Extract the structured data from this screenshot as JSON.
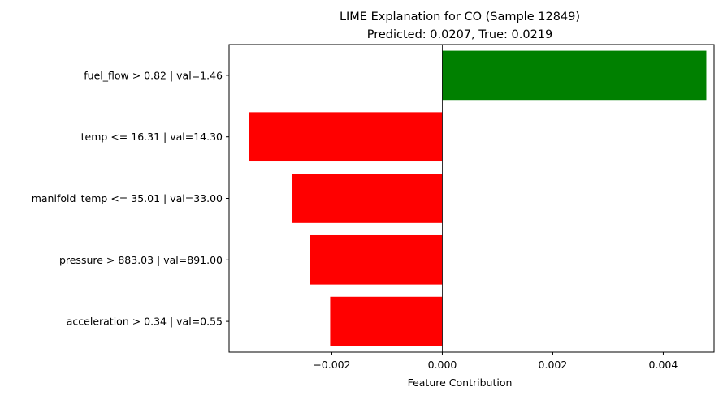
{
  "chart_data": {
    "type": "bar",
    "orientation": "horizontal",
    "title": "LIME Explanation for CO (Sample 12849)",
    "subtitle": "Predicted: 0.0207, True: 0.0219",
    "xlabel": "Feature Contribution",
    "ylabel": "",
    "xlim": [
      -0.00386,
      0.00492
    ],
    "xticks": [
      -0.002,
      0.0,
      0.002,
      0.004
    ],
    "xtick_labels": [
      "−0.002",
      "0.000",
      "0.002",
      "0.004"
    ],
    "grid": false,
    "zero_line": true,
    "categories": [
      "fuel_flow > 0.82 | val=1.46",
      "temp <= 16.31 | val=14.30",
      "manifold_temp <= 35.01 | val=33.00",
      "pressure > 883.03 | val=891.00",
      "acceleration > 0.34 | val=0.55"
    ],
    "values": [
      0.00478,
      -0.0035,
      -0.00272,
      -0.0024,
      -0.00203
    ],
    "colors": [
      "#008000",
      "#ff0000",
      "#ff0000",
      "#ff0000",
      "#ff0000"
    ]
  }
}
